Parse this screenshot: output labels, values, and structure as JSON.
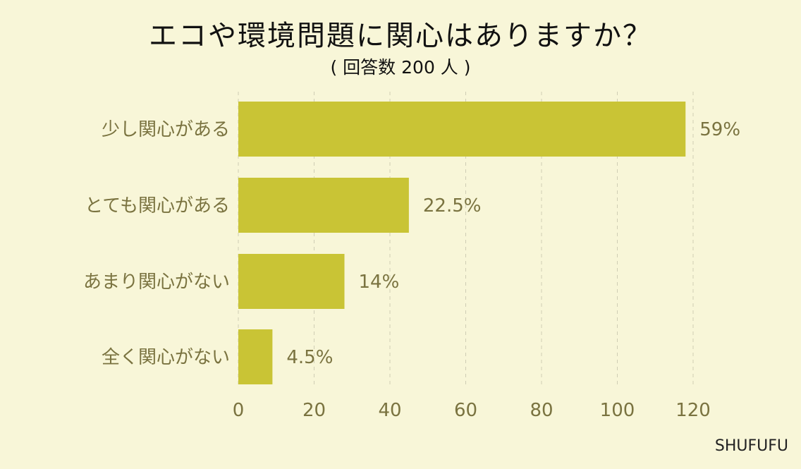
{
  "chart_data": {
    "type": "bar",
    "orientation": "horizontal",
    "title": "エコや環境問題に関心はありますか？",
    "subtitle": "( 回答数 200 人 )",
    "categories": [
      "少し関心がある",
      "とても関心がある",
      "あまり関心がない",
      "全く関心がない"
    ],
    "values": [
      118,
      45,
      28,
      9
    ],
    "value_labels": [
      "59%",
      "22.5%",
      "14%",
      "4.5%"
    ],
    "xlim": [
      0,
      120
    ],
    "x_ticks": [
      0,
      20,
      40,
      60,
      80,
      100,
      120
    ],
    "grid": true,
    "legend": "none",
    "colors": {
      "bar": "#c9c435",
      "background": "#f8f6d8",
      "label_text": "#7a7340",
      "grid": "#cfcdb4"
    }
  },
  "brand": "SHUFUFU"
}
